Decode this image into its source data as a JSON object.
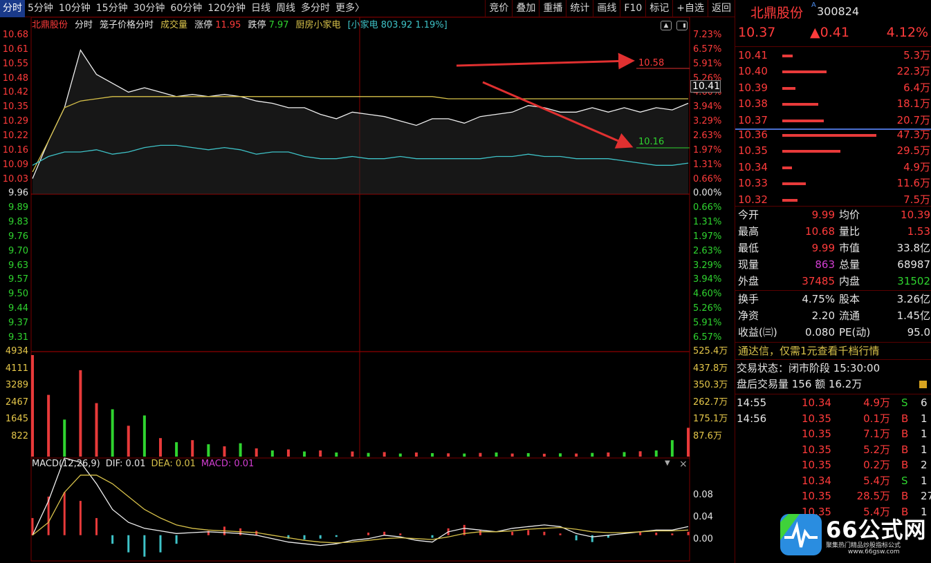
{
  "tabs": [
    "分时",
    "5分钟",
    "10分钟",
    "15分钟",
    "30分钟",
    "60分钟",
    "120分钟",
    "日线",
    "周线",
    "多分时",
    "更多〉"
  ],
  "tools": [
    "竞价",
    "叠加",
    "重播",
    "统计",
    "画线",
    "F10",
    "标记",
    "+自选",
    "返回"
  ],
  "chart_header": {
    "name": "北鼎股份",
    "mode": "分时",
    "indicator": "笼子价格分时",
    "vol_label": "成交量",
    "limit_up_label": "涨停",
    "limit_up": "11.95",
    "limit_down_label": "跌停",
    "limit_down": "7.97",
    "sector": "厨房小家电",
    "sector_quote": "[小家电 803.92 1.19%]"
  },
  "price_axis": [
    "10.68",
    "10.61",
    "10.55",
    "10.48",
    "10.42",
    "10.35",
    "10.29",
    "10.22",
    "10.16",
    "10.09",
    "10.03",
    "9.96",
    "9.89",
    "9.83",
    "9.76",
    "9.70",
    "9.63",
    "9.57",
    "9.50",
    "9.44",
    "9.37",
    "9.31"
  ],
  "pct_axis": [
    "7.23%",
    "6.57%",
    "5.91%",
    "5.26%",
    "4.60%",
    "3.94%",
    "3.29%",
    "2.63%",
    "1.97%",
    "1.31%",
    "0.66%",
    "0.00%",
    "0.66%",
    "1.31%",
    "1.97%",
    "2.63%",
    "3.29%",
    "3.94%",
    "4.60%",
    "5.26%",
    "5.91%",
    "6.57%"
  ],
  "vol_axis_left": [
    "4934",
    "4111",
    "3289",
    "2467",
    "1645",
    "822"
  ],
  "vol_axis_right": [
    "525.4万",
    "437.8万",
    "350.3万",
    "262.7万",
    "175.1万",
    "87.6万"
  ],
  "macd": {
    "label": "MACD(12,26,9)",
    "dif_label": "DIF: 0.01",
    "dea_label": "DEA: 0.01",
    "macd_label": "MACD: 0.01",
    "axis": [
      "0.08",
      "0.04",
      "0.00"
    ]
  },
  "annotations": {
    "upper": "10.58",
    "lower": "10.16",
    "cursor_price": "10.41"
  },
  "stock": {
    "name": "北鼎股份",
    "tag": "A",
    "code": "300824",
    "price": "10.37",
    "change": "▲0.41",
    "pct": "4.12%"
  },
  "asks": [
    {
      "price": "10.41",
      "vol": "5.3万",
      "ratio": 0.11
    },
    {
      "price": "10.40",
      "vol": "22.3万",
      "ratio": 0.47
    },
    {
      "price": "10.39",
      "vol": "6.4万",
      "ratio": 0.14
    },
    {
      "price": "10.38",
      "vol": "18.1万",
      "ratio": 0.38
    },
    {
      "price": "10.37",
      "vol": "20.7万",
      "ratio": 0.44
    }
  ],
  "bids": [
    {
      "price": "10.36",
      "vol": "47.3万",
      "ratio": 1.0
    },
    {
      "price": "10.35",
      "vol": "29.5万",
      "ratio": 0.62
    },
    {
      "price": "10.34",
      "vol": "4.9万",
      "ratio": 0.1
    },
    {
      "price": "10.33",
      "vol": "11.6万",
      "ratio": 0.25
    },
    {
      "price": "10.32",
      "vol": "7.5万",
      "ratio": 0.16
    }
  ],
  "stats": [
    {
      "l1": "今开",
      "v1": "9.99",
      "c1": "red",
      "l2": "均价",
      "v2": "10.39",
      "c2": "red"
    },
    {
      "l1": "最高",
      "v1": "10.68",
      "c1": "red",
      "l2": "量比",
      "v2": "1.53",
      "c2": "red"
    },
    {
      "l1": "最低",
      "v1": "9.99",
      "c1": "red",
      "l2": "市值",
      "v2": "33.8亿",
      "c2": "wht"
    },
    {
      "l1": "现量",
      "v1": "863",
      "c1": "mag",
      "l2": "总量",
      "v2": "68987",
      "c2": "wht"
    },
    {
      "l1": "外盘",
      "v1": "37485",
      "c1": "red",
      "l2": "内盘",
      "v2": "31502",
      "c2": "grn"
    }
  ],
  "stats2": [
    {
      "l1": "换手",
      "v1": "4.75%",
      "l2": "股本",
      "v2": "3.26亿"
    },
    {
      "l1": "净资",
      "v1": "2.20",
      "l2": "流通",
      "v2": "1.45亿"
    },
    {
      "l1": "收益(㈢)",
      "v1": "0.080",
      "l2": "PE(动)",
      "v2": "95.0"
    }
  ],
  "promo": "通达信，仅需1元查看千档行情",
  "trade_status": "交易状态：闭市阶段 15:30:00",
  "after_hours": "盘后交易量 156 额 16.2万",
  "ticks": [
    {
      "time": "14:55",
      "price": "10.34",
      "vol": "4.9万",
      "side": "S",
      "extra": "6"
    },
    {
      "time": "14:56",
      "price": "10.35",
      "vol": "0.1万",
      "side": "B",
      "extra": "1"
    },
    {
      "time": "",
      "price": "10.35",
      "vol": "7.1万",
      "side": "B",
      "extra": "1"
    },
    {
      "time": "",
      "price": "10.35",
      "vol": "5.2万",
      "side": "B",
      "extra": "1"
    },
    {
      "time": "",
      "price": "10.35",
      "vol": "0.2万",
      "side": "B",
      "extra": "2"
    },
    {
      "time": "",
      "price": "10.34",
      "vol": "5.4万",
      "side": "S",
      "extra": "1"
    },
    {
      "time": "",
      "price": "10.35",
      "vol": "28.5万",
      "side": "B",
      "extra": "27"
    },
    {
      "time": "",
      "price": "10.35",
      "vol": "5.4万",
      "side": "B",
      "extra": "1"
    }
  ],
  "logo": {
    "text": "66公式网",
    "sub": "聚集热门精品炒股指标公式",
    "url": "www.66gsw.com"
  },
  "chart_data": {
    "type": "line",
    "x_range": [
      0,
      240
    ],
    "ylim": [
      9.24,
      10.68
    ],
    "prev_close": 9.96,
    "price_series": [
      10.03,
      10.2,
      10.35,
      10.61,
      10.5,
      10.46,
      10.42,
      10.44,
      10.42,
      10.4,
      10.41,
      10.4,
      10.41,
      10.4,
      10.38,
      10.37,
      10.35,
      10.35,
      10.32,
      10.3,
      10.33,
      10.32,
      10.31,
      10.29,
      10.27,
      10.3,
      10.3,
      10.28,
      10.31,
      10.32,
      10.33,
      10.36,
      10.35,
      10.33,
      10.33,
      10.35,
      10.33,
      10.35,
      10.33,
      10.35,
      10.34,
      10.37
    ],
    "avg_series": [
      10.06,
      10.2,
      10.35,
      10.38,
      10.39,
      10.4,
      10.4,
      10.4,
      10.4,
      10.4,
      10.4,
      10.4,
      10.4,
      10.4,
      10.4,
      10.4,
      10.4,
      10.4,
      10.4,
      10.4,
      10.4,
      10.4,
      10.4,
      10.4,
      10.4,
      10.4,
      10.39,
      10.39,
      10.39,
      10.39,
      10.39,
      10.39,
      10.39,
      10.39,
      10.39,
      10.39,
      10.39,
      10.39,
      10.39,
      10.39,
      10.39,
      10.39
    ],
    "sector_series": [
      10.09,
      10.13,
      10.15,
      10.15,
      10.16,
      10.14,
      10.15,
      10.17,
      10.18,
      10.18,
      10.17,
      10.16,
      10.17,
      10.16,
      10.14,
      10.15,
      10.15,
      10.13,
      10.12,
      10.12,
      10.13,
      10.12,
      10.12,
      10.13,
      10.12,
      10.12,
      10.12,
      10.12,
      10.12,
      10.13,
      10.13,
      10.14,
      10.13,
      10.13,
      10.12,
      10.12,
      10.12,
      10.11,
      10.1,
      10.09,
      10.09,
      10.1
    ],
    "volume": [
      4934,
      3000,
      1800,
      4200,
      2600,
      2300,
      1500,
      2000,
      900,
      700,
      800,
      600,
      500,
      650,
      400,
      300,
      350,
      250,
      300,
      200,
      250,
      180,
      220,
      150,
      200,
      170,
      160,
      150,
      180,
      200,
      150,
      170,
      140,
      160,
      150,
      180,
      200,
      220,
      260,
      300,
      800,
      1400
    ],
    "volume_side": [
      "r",
      "r",
      "g",
      "r",
      "r",
      "g",
      "r",
      "g",
      "r",
      "g",
      "r",
      "g",
      "r",
      "g",
      "r",
      "g",
      "r",
      "g",
      "r",
      "g",
      "r",
      "g",
      "r",
      "g",
      "r",
      "g",
      "r",
      "g",
      "r",
      "g",
      "r",
      "g",
      "r",
      "g",
      "r",
      "g",
      "r",
      "g",
      "r",
      "g",
      "g",
      "r"
    ],
    "vol_ylim": [
      0,
      4934
    ],
    "macd_hist": [
      0.02,
      0.045,
      0.05,
      0.04,
      0.02,
      -0.01,
      -0.02,
      -0.025,
      -0.02,
      -0.01,
      0.0,
      0.005,
      0.01,
      0.008,
      0.005,
      0.0,
      -0.004,
      -0.005,
      -0.004,
      -0.002,
      0.0,
      0.003,
      0.004,
      0.002,
      0.0,
      -0.003,
      0.008,
      0.012,
      0.006,
      0.0,
      0.004,
      0.006,
      0.004,
      0.002,
      -0.006,
      -0.008,
      -0.003,
      0.0,
      0.004,
      0.003,
      0.002,
      0.004
    ],
    "macd_dif": [
      0.0,
      0.04,
      0.09,
      0.085,
      0.06,
      0.03,
      0.015,
      0.008,
      0.005,
      0.002,
      0.003,
      0.004,
      0.003,
      0.002,
      0.0,
      -0.004,
      -0.008,
      -0.01,
      -0.012,
      -0.01,
      -0.006,
      -0.004,
      0.0,
      -0.002,
      -0.006,
      -0.008,
      0.004,
      0.008,
      0.006,
      0.004,
      0.008,
      0.01,
      0.012,
      0.01,
      0.002,
      -0.002,
      0.0,
      0.002,
      0.004,
      0.006,
      0.006,
      0.01
    ],
    "macd_dea": [
      0.0,
      0.015,
      0.05,
      0.07,
      0.07,
      0.06,
      0.045,
      0.03,
      0.02,
      0.012,
      0.008,
      0.006,
      0.005,
      0.004,
      0.003,
      0.0,
      -0.003,
      -0.006,
      -0.008,
      -0.009,
      -0.008,
      -0.006,
      -0.004,
      -0.003,
      -0.004,
      -0.005,
      -0.002,
      0.002,
      0.004,
      0.004,
      0.005,
      0.007,
      0.008,
      0.009,
      0.007,
      0.004,
      0.003,
      0.003,
      0.004,
      0.005,
      0.005,
      0.006
    ],
    "macd_ylim": [
      -0.03,
      0.09
    ]
  }
}
